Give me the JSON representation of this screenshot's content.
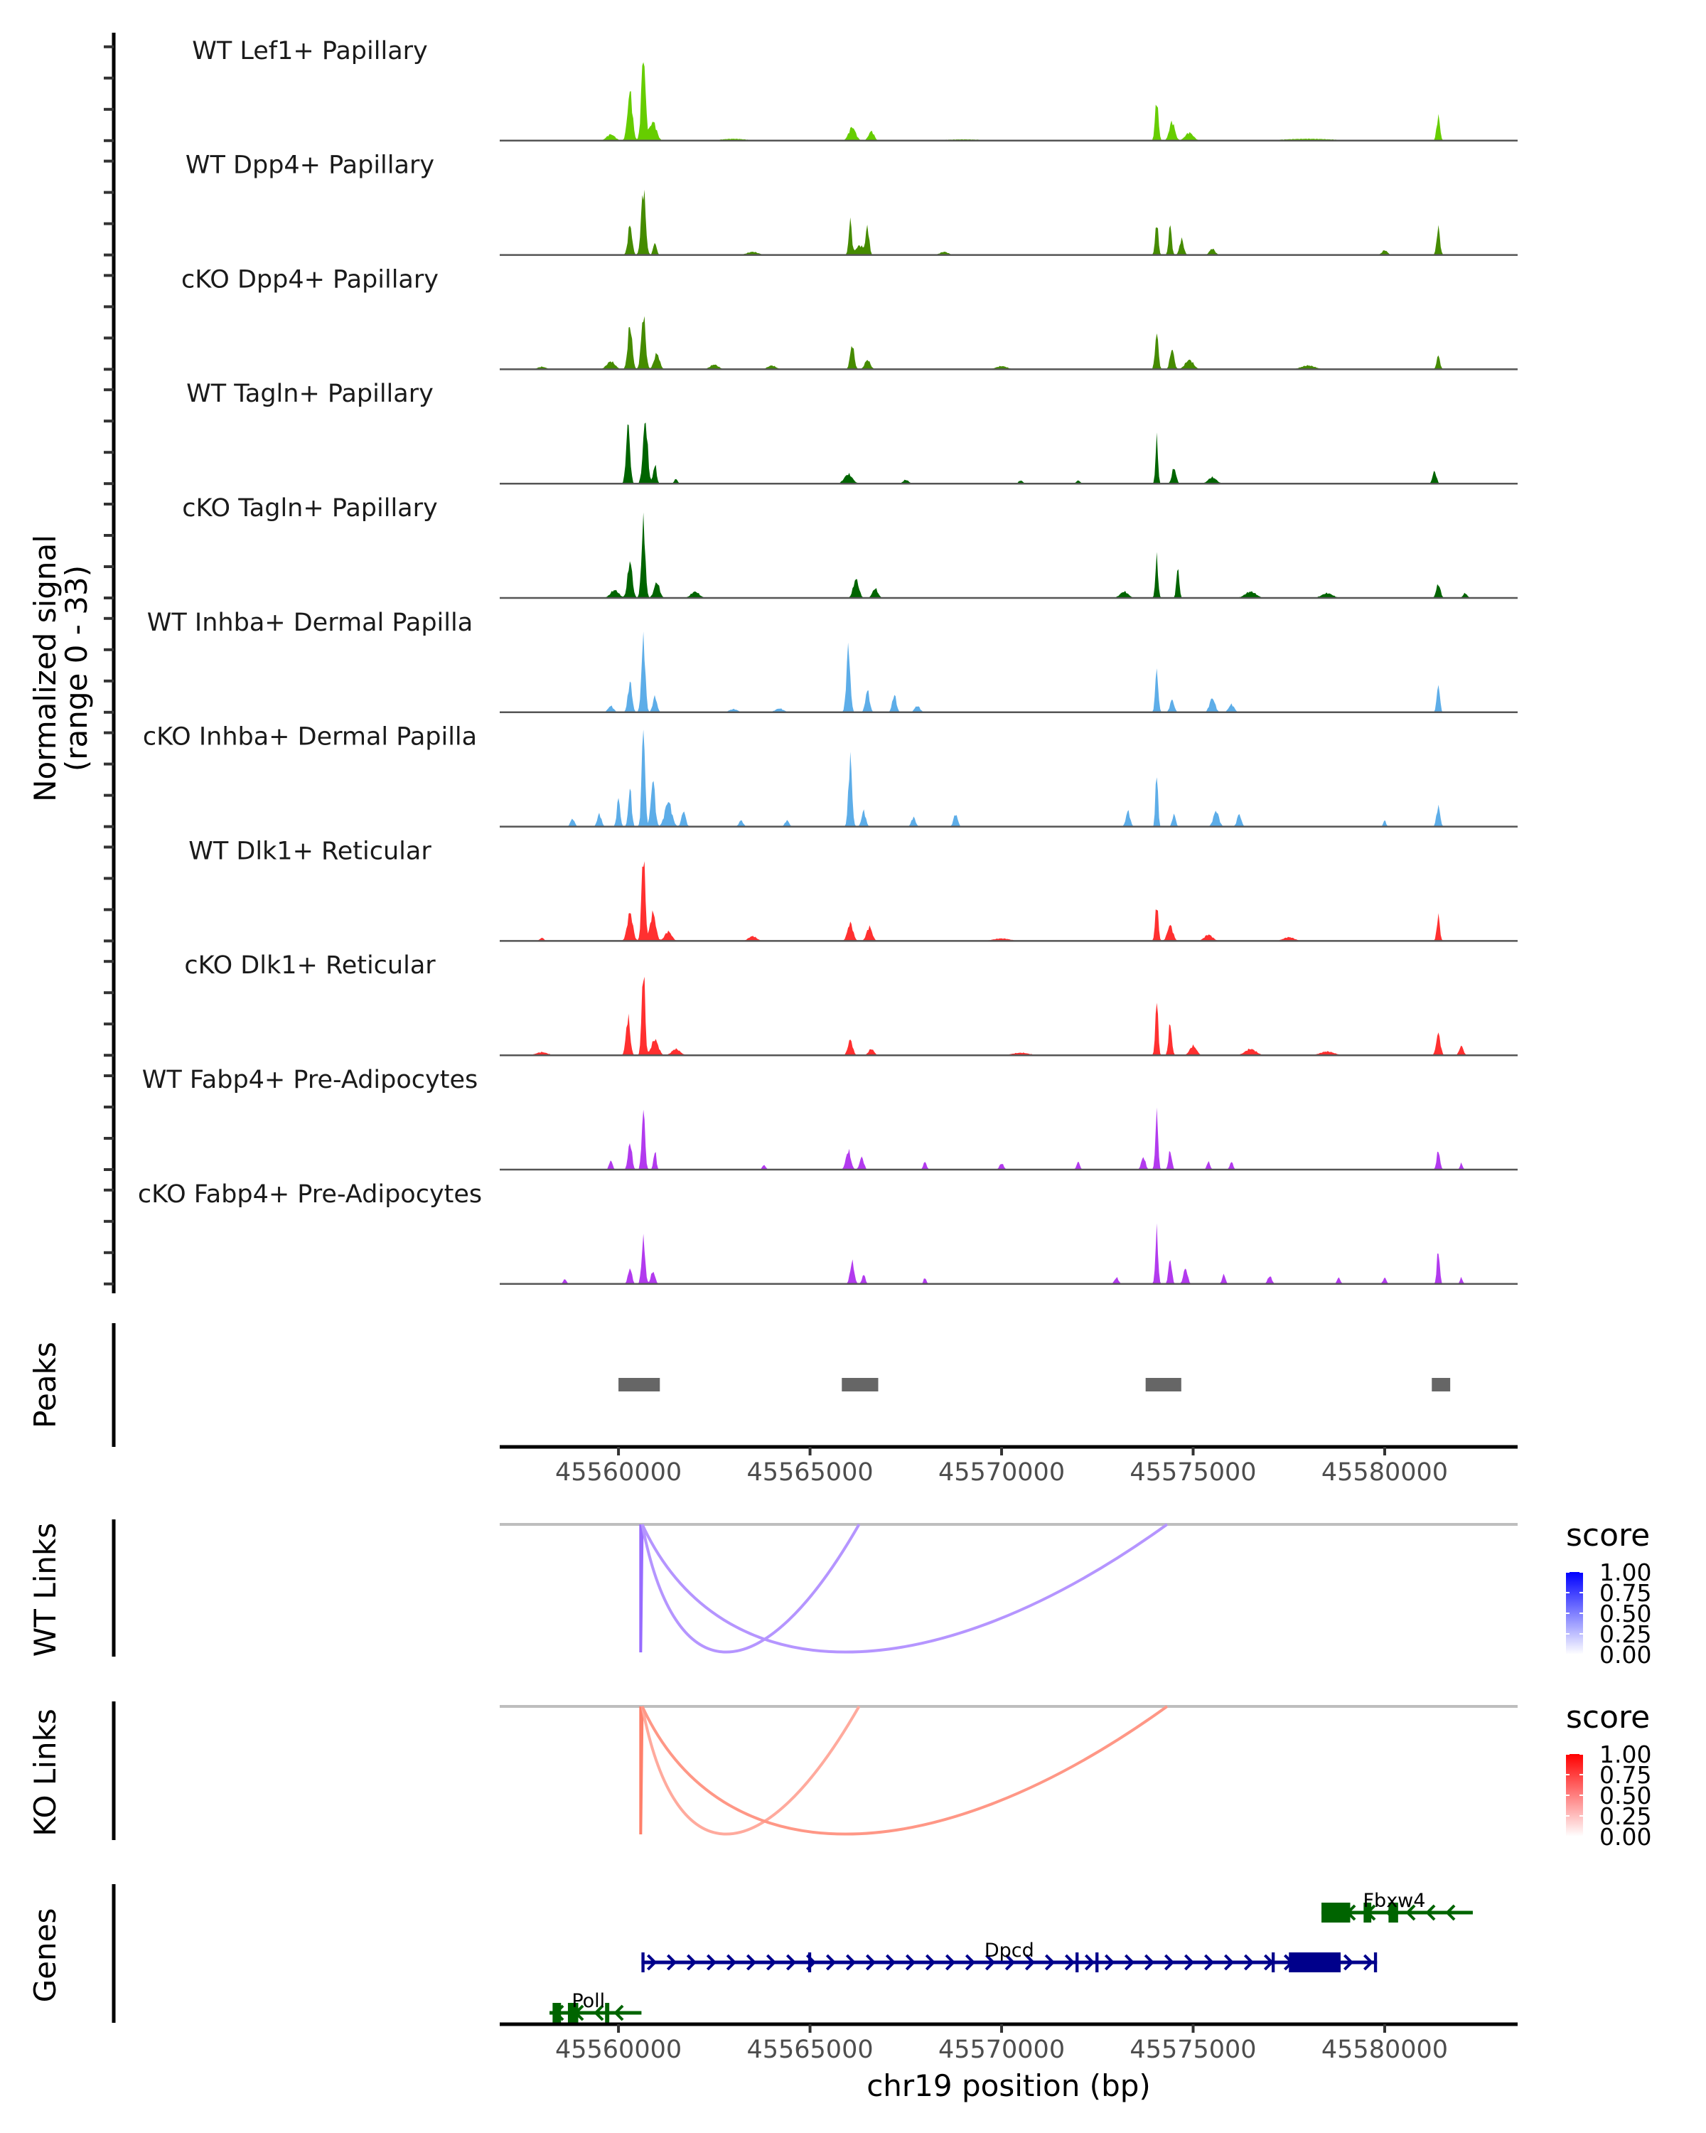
{
  "chart_data": {
    "type": "area",
    "title": "",
    "region": {
      "chrom": "chr19",
      "start": 45556900,
      "end": 45583470
    },
    "xlabel": "chr19 position (bp)",
    "ylabel": "Normalized signal",
    "ylabel_sub": "(range 0 - 33)",
    "ylim": [
      0,
      33
    ],
    "x_ticks": [
      45560000,
      45565000,
      45570000,
      45575000,
      45580000
    ],
    "x_tick_labels": [
      "45560000",
      "45565000",
      "45570000",
      "45575000",
      "45580000"
    ],
    "tracks": [
      {
        "name": "WT Lef1+ Papillary",
        "color": "#66CD00",
        "peaks": [
          [
            45560300,
            15.5,
            180
          ],
          [
            45560650,
            27,
            150
          ],
          [
            45560900,
            6,
            250
          ],
          [
            45559800,
            2,
            300
          ],
          [
            45566100,
            4.3,
            250
          ],
          [
            45566600,
            3,
            200
          ],
          [
            45574050,
            13,
            120
          ],
          [
            45574450,
            6,
            200
          ],
          [
            45574900,
            2.5,
            300
          ],
          [
            45581400,
            7.8,
            120
          ],
          [
            45563000,
            0.6,
            900
          ],
          [
            45569000,
            0.4,
            1500
          ],
          [
            45578000,
            0.6,
            1800
          ]
        ]
      },
      {
        "name": "WT Dpp4+ Papillary",
        "color": "#458B00",
        "peaks": [
          [
            45560300,
            9.6,
            150
          ],
          [
            45560650,
            21,
            160
          ],
          [
            45560950,
            4,
            120
          ],
          [
            45566050,
            11,
            110
          ],
          [
            45566500,
            8.7,
            120
          ],
          [
            45566300,
            3,
            300
          ],
          [
            45574050,
            10.5,
            110
          ],
          [
            45574400,
            9.6,
            110
          ],
          [
            45574700,
            5,
            150
          ],
          [
            45575500,
            2,
            200
          ],
          [
            45581400,
            8.7,
            120
          ],
          [
            45580000,
            1.5,
            200
          ],
          [
            45568500,
            1,
            300
          ],
          [
            45563500,
            1,
            400
          ]
        ]
      },
      {
        "name": "cKO Dpp4+ Papillary",
        "color": "#458B00",
        "peaks": [
          [
            45560300,
            14,
            160
          ],
          [
            45560650,
            17,
            160
          ],
          [
            45561000,
            5,
            200
          ],
          [
            45559800,
            2.5,
            300
          ],
          [
            45566100,
            7.8,
            150
          ],
          [
            45566500,
            3,
            200
          ],
          [
            45574050,
            11.7,
            120
          ],
          [
            45574450,
            6.5,
            150
          ],
          [
            45574900,
            3,
            300
          ],
          [
            45581400,
            4.4,
            120
          ],
          [
            45562500,
            1.5,
            300
          ],
          [
            45564000,
            1.2,
            300
          ],
          [
            45570000,
            1,
            400
          ],
          [
            45578000,
            1.2,
            500
          ],
          [
            45558000,
            0.8,
            300
          ]
        ]
      },
      {
        "name": "WT Tagln+ Papillary",
        "color": "#006400",
        "peaks": [
          [
            45560250,
            19,
            140
          ],
          [
            45560700,
            20,
            170
          ],
          [
            45560950,
            6,
            120
          ],
          [
            45561500,
            1.5,
            120
          ],
          [
            45566000,
            3,
            300
          ],
          [
            45567500,
            1.2,
            200
          ],
          [
            45574050,
            14.4,
            90
          ],
          [
            45574500,
            5,
            150
          ],
          [
            45575500,
            2,
            300
          ],
          [
            45581300,
            4,
            140
          ],
          [
            45570500,
            1,
            150
          ],
          [
            45572000,
            1,
            150
          ]
        ]
      },
      {
        "name": "cKO Tagln+ Papillary",
        "color": "#006400",
        "peaks": [
          [
            45560300,
            11.7,
            170
          ],
          [
            45560650,
            23.5,
            140
          ],
          [
            45561000,
            5,
            200
          ],
          [
            45559900,
            2.5,
            300
          ],
          [
            45562000,
            2,
            300
          ],
          [
            45566200,
            6,
            200
          ],
          [
            45566700,
            3,
            200
          ],
          [
            45574050,
            12.6,
            100
          ],
          [
            45574600,
            10,
            100
          ],
          [
            45573200,
            2,
            300
          ],
          [
            45576500,
            2,
            400
          ],
          [
            45578500,
            1.5,
            400
          ],
          [
            45581400,
            4.4,
            150
          ],
          [
            45582100,
            1.5,
            150
          ]
        ]
      },
      {
        "name": "WT Inhba+ Dermal Papilla",
        "color": "#5DADE8",
        "peaks": [
          [
            45560300,
            9.6,
            150
          ],
          [
            45560650,
            23,
            140
          ],
          [
            45560950,
            5,
            150
          ],
          [
            45559800,
            2,
            200
          ],
          [
            45566000,
            20.5,
            140
          ],
          [
            45566500,
            7,
            150
          ],
          [
            45567200,
            5.5,
            150
          ],
          [
            45567800,
            2,
            200
          ],
          [
            45574050,
            13.5,
            110
          ],
          [
            45574450,
            4,
            150
          ],
          [
            45575500,
            4.5,
            200
          ],
          [
            45576000,
            2.5,
            200
          ],
          [
            45581400,
            9,
            110
          ],
          [
            45563000,
            1,
            300
          ],
          [
            45564200,
            1.2,
            300
          ]
        ]
      },
      {
        "name": "cKO Inhba+ Dermal Papilla",
        "color": "#5DADE8",
        "peaks": [
          [
            45560000,
            9,
            120
          ],
          [
            45560300,
            12,
            120
          ],
          [
            45560650,
            32,
            120
          ],
          [
            45560900,
            15,
            150
          ],
          [
            45561300,
            8,
            250
          ],
          [
            45561700,
            5,
            150
          ],
          [
            45559500,
            4,
            150
          ],
          [
            45558800,
            2.5,
            150
          ],
          [
            45566050,
            22,
            130
          ],
          [
            45566400,
            5,
            150
          ],
          [
            45567700,
            3,
            150
          ],
          [
            45568800,
            4,
            150
          ],
          [
            45574050,
            18,
            90
          ],
          [
            45574500,
            4,
            120
          ],
          [
            45573300,
            5,
            150
          ],
          [
            45575600,
            5,
            200
          ],
          [
            45576200,
            4,
            150
          ],
          [
            45581400,
            6.5,
            130
          ],
          [
            45580000,
            2,
            100
          ],
          [
            45564400,
            2,
            150
          ],
          [
            45563200,
            2,
            150
          ]
        ]
      },
      {
        "name": "WT Dlk1+ Reticular",
        "color": "#FF3030",
        "peaks": [
          [
            45560300,
            9,
            200
          ],
          [
            45560650,
            28,
            130
          ],
          [
            45560900,
            9,
            200
          ],
          [
            45561300,
            3,
            250
          ],
          [
            45558000,
            1,
            150
          ],
          [
            45566050,
            5.7,
            200
          ],
          [
            45566550,
            4.5,
            200
          ],
          [
            45563500,
            1.5,
            300
          ],
          [
            45574050,
            12,
            110
          ],
          [
            45574400,
            5,
            200
          ],
          [
            45575400,
            2,
            300
          ],
          [
            45577500,
            1.2,
            400
          ],
          [
            45581400,
            8,
            110
          ],
          [
            45570000,
            0.8,
            600
          ]
        ]
      },
      {
        "name": "cKO Dlk1+ Reticular",
        "color": "#FF3030",
        "peaks": [
          [
            45560250,
            12,
            150
          ],
          [
            45560650,
            27.4,
            120
          ],
          [
            45560950,
            5,
            250
          ],
          [
            45561500,
            2,
            300
          ],
          [
            45558000,
            1,
            400
          ],
          [
            45566050,
            5,
            170
          ],
          [
            45566600,
            2,
            200
          ],
          [
            45574050,
            18,
            100
          ],
          [
            45574400,
            10,
            120
          ],
          [
            45575000,
            3,
            250
          ],
          [
            45576500,
            2,
            400
          ],
          [
            45581400,
            7,
            150
          ],
          [
            45582000,
            3,
            150
          ],
          [
            45570500,
            0.8,
            600
          ],
          [
            45578500,
            1.2,
            500
          ]
        ]
      },
      {
        "name": "WT Fabp4+ Pre-Adipocytes",
        "color": "#B23AEE",
        "peaks": [
          [
            45560300,
            8.7,
            140
          ],
          [
            45560650,
            19,
            120
          ],
          [
            45560950,
            6,
            100
          ],
          [
            45559800,
            3,
            120
          ],
          [
            45566000,
            6,
            180
          ],
          [
            45566350,
            4,
            150
          ],
          [
            45563800,
            1.5,
            120
          ],
          [
            45568000,
            2.5,
            120
          ],
          [
            45574050,
            18,
            100
          ],
          [
            45574400,
            6,
            120
          ],
          [
            45573700,
            4,
            150
          ],
          [
            45575400,
            2.5,
            120
          ],
          [
            45576000,
            2.5,
            120
          ],
          [
            45581400,
            6,
            120
          ],
          [
            45582000,
            2,
            100
          ],
          [
            45570000,
            2,
            150
          ],
          [
            45572000,
            2.5,
            120
          ]
        ]
      },
      {
        "name": "cKO Fabp4+ Pre-Adipocytes",
        "color": "#B23AEE",
        "peaks": [
          [
            45560300,
            5,
            140
          ],
          [
            45560650,
            14,
            130
          ],
          [
            45560900,
            4,
            150
          ],
          [
            45558600,
            1.5,
            120
          ],
          [
            45566100,
            7,
            150
          ],
          [
            45566400,
            3,
            120
          ],
          [
            45568000,
            2,
            100
          ],
          [
            45574050,
            16.5,
            100
          ],
          [
            45574400,
            8,
            120
          ],
          [
            45574800,
            5,
            150
          ],
          [
            45575800,
            3,
            120
          ],
          [
            45577000,
            2.5,
            150
          ],
          [
            45573000,
            2,
            150
          ],
          [
            45578800,
            2,
            120
          ],
          [
            45581400,
            11,
            100
          ],
          [
            45582000,
            2,
            100
          ],
          [
            45580000,
            2,
            120
          ]
        ]
      }
    ],
    "peaks_track": {
      "label": "Peaks",
      "color": "#666666",
      "regions": [
        [
          45560000,
          45561080
        ],
        [
          45565830,
          45566780
        ],
        [
          45573760,
          45574690
        ],
        [
          45581230,
          45581710
        ]
      ]
    },
    "links": [
      {
        "label": "WT Links",
        "scale_low": "#FFFFFF",
        "scale_high": "#0000FF",
        "arcs": [
          {
            "start": 45560580,
            "end": 45560620,
            "score": 0.55
          },
          {
            "start": 45560620,
            "end": 45566280,
            "score": 0.35
          },
          {
            "start": 45560620,
            "end": 45574320,
            "score": 0.35
          }
        ]
      },
      {
        "label": "KO Links",
        "scale_low": "#FFFFFF",
        "scale_high": "#FF0000",
        "arcs": [
          {
            "start": 45560580,
            "end": 45560620,
            "score": 0.5
          },
          {
            "start": 45560620,
            "end": 45566280,
            "score": 0.28
          },
          {
            "start": 45560620,
            "end": 45574320,
            "score": 0.38
          }
        ]
      }
    ],
    "legend": {
      "title": "score",
      "ticks": [
        "1.00",
        "0.75",
        "0.50",
        "0.25",
        "0.00"
      ],
      "placement": "right"
    },
    "genes": {
      "label": "Genes",
      "items": [
        {
          "name": "Fbxw4",
          "strand": "-",
          "row": 0,
          "color": "#006400",
          "start": 45578350,
          "end": 45582300,
          "exons": [
            [
              45578350,
              45579100
            ],
            [
              45579450,
              45579650
            ],
            [
              45580100,
              45580350
            ]
          ]
        },
        {
          "name": "Dpcd",
          "strand": "+",
          "row": 1,
          "color": "#00008B",
          "start": 45560600,
          "end": 45579800,
          "exons": [
            [
              45560600,
              45560680
            ],
            [
              45564950,
              45565030
            ],
            [
              45571930,
              45572010
            ],
            [
              45572450,
              45572530
            ],
            [
              45577050,
              45577130
            ],
            [
              45577500,
              45578850
            ],
            [
              45579720,
              45579800
            ]
          ]
        },
        {
          "name": "Poll",
          "strand": "-",
          "row": 2,
          "color": "#006400",
          "start": 45558200,
          "end": 45560600,
          "exons": [
            [
              45558280,
              45558500
            ],
            [
              45558680,
              45558950
            ],
            [
              45559650,
              45559760
            ]
          ]
        }
      ]
    }
  }
}
